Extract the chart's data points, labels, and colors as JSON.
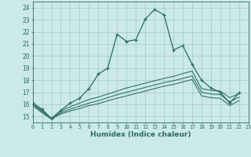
{
  "xlabel": "Humidex (Indice chaleur)",
  "xlim": [
    0,
    23
  ],
  "ylim": [
    14.5,
    24.5
  ],
  "bg_color": "#cce9e9",
  "line_color": "#2a6b62",
  "main_series": [
    16.1,
    15.6,
    14.8,
    15.5,
    16.1,
    16.5,
    17.3,
    18.5,
    19.0,
    21.8,
    21.2,
    21.35,
    23.05,
    23.85,
    23.4,
    20.5,
    20.85,
    19.3,
    18.0,
    17.35,
    17.0,
    16.1,
    16.95
  ],
  "line2": [
    16.1,
    15.5,
    14.85,
    15.45,
    15.8,
    16.1,
    16.4,
    16.6,
    16.85,
    17.1,
    17.35,
    17.55,
    17.75,
    17.95,
    18.15,
    18.3,
    18.55,
    18.75,
    17.3,
    17.15,
    17.1,
    16.55,
    16.9
  ],
  "line3": [
    16.0,
    15.4,
    14.82,
    15.3,
    15.6,
    15.85,
    16.1,
    16.3,
    16.55,
    16.8,
    17.0,
    17.2,
    17.4,
    17.6,
    17.8,
    17.95,
    18.15,
    18.35,
    17.0,
    16.85,
    16.8,
    16.2,
    16.6
  ],
  "line4": [
    15.9,
    15.3,
    14.78,
    15.2,
    15.45,
    15.65,
    15.9,
    16.05,
    16.3,
    16.5,
    16.7,
    16.9,
    17.1,
    17.3,
    17.5,
    17.65,
    17.85,
    18.05,
    16.7,
    16.55,
    16.5,
    15.9,
    16.3
  ],
  "x_ticks": [
    0,
    1,
    2,
    3,
    4,
    5,
    6,
    7,
    8,
    9,
    10,
    11,
    12,
    13,
    14,
    15,
    16,
    17,
    18,
    19,
    20,
    21,
    22,
    23
  ],
  "y_ticks": [
    15,
    16,
    17,
    18,
    19,
    20,
    21,
    22,
    23,
    24
  ]
}
